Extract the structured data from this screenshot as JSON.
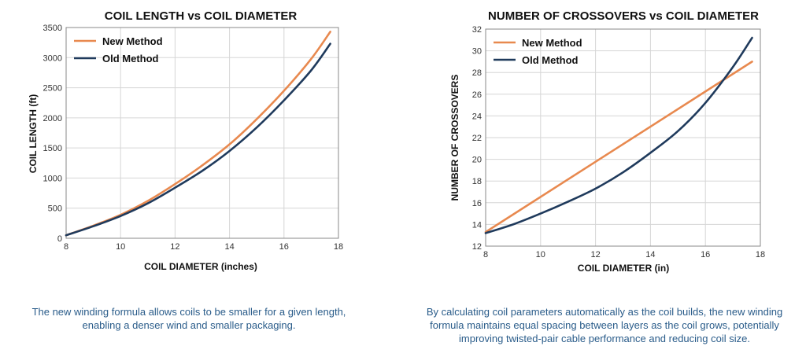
{
  "colors": {
    "new_method": "#e8894f",
    "old_method": "#1f3a5c",
    "grid": "#d6d6d6",
    "plot_border": "#888888",
    "caption": "#2a5c8a"
  },
  "chart_data": [
    {
      "type": "line",
      "title": "COIL LENGTH vs COIL DIAMETER",
      "xlabel": "COIL DIAMETER (inches)",
      "ylabel": "COIL LENGTH (ft)",
      "xlim": [
        8,
        18
      ],
      "ylim": [
        0,
        3500
      ],
      "xticks": [
        8,
        10,
        12,
        14,
        16,
        18
      ],
      "yticks": [
        0,
        500,
        1000,
        1500,
        2000,
        2500,
        3000,
        3500
      ],
      "grid": true,
      "legend": "top-left",
      "series": [
        {
          "name": "New Method",
          "color": "#e8894f",
          "x": [
            8,
            9,
            10,
            11,
            12,
            13,
            14,
            15,
            16,
            17,
            17.7
          ],
          "y": [
            50,
            210,
            390,
            620,
            900,
            1210,
            1560,
            1980,
            2450,
            2980,
            3430
          ]
        },
        {
          "name": "Old Method",
          "color": "#1f3a5c",
          "x": [
            8,
            9,
            10,
            11,
            12,
            13,
            14,
            15,
            16,
            17,
            17.7
          ],
          "y": [
            50,
            200,
            370,
            580,
            840,
            1120,
            1450,
            1840,
            2290,
            2790,
            3230
          ]
        }
      ]
    },
    {
      "type": "line",
      "title": "NUMBER OF CROSSOVERS vs COIL DIAMETER",
      "xlabel": "COIL DIAMETER (in)",
      "ylabel": "NUMBER OF CROSSOVERS",
      "xlim": [
        8,
        18
      ],
      "ylim": [
        12,
        32
      ],
      "xticks": [
        8,
        10,
        12,
        14,
        16,
        18
      ],
      "yticks": [
        12,
        14,
        16,
        18,
        20,
        22,
        24,
        26,
        28,
        30,
        32
      ],
      "grid": true,
      "legend": "top-left",
      "series": [
        {
          "name": "New Method",
          "color": "#e8894f",
          "x": [
            8,
            17.7
          ],
          "y": [
            13.3,
            29.0
          ]
        },
        {
          "name": "Old Method",
          "color": "#1f3a5c",
          "x": [
            8,
            9,
            10,
            11,
            12,
            13,
            14,
            15,
            16,
            17,
            17.7
          ],
          "y": [
            13.2,
            14.0,
            15.0,
            16.1,
            17.3,
            18.8,
            20.6,
            22.6,
            25.2,
            28.5,
            31.2
          ]
        }
      ]
    }
  ],
  "captions": {
    "left": "The new winding formula allows coils to be smaller for a given length, enabling a denser wind and smaller packaging.",
    "right": "By calculating coil parameters automatically as the coil builds, the new winding formula maintains equal spacing between layers as the coil grows, potentially improving twisted-pair cable performance and reducing coil size."
  }
}
